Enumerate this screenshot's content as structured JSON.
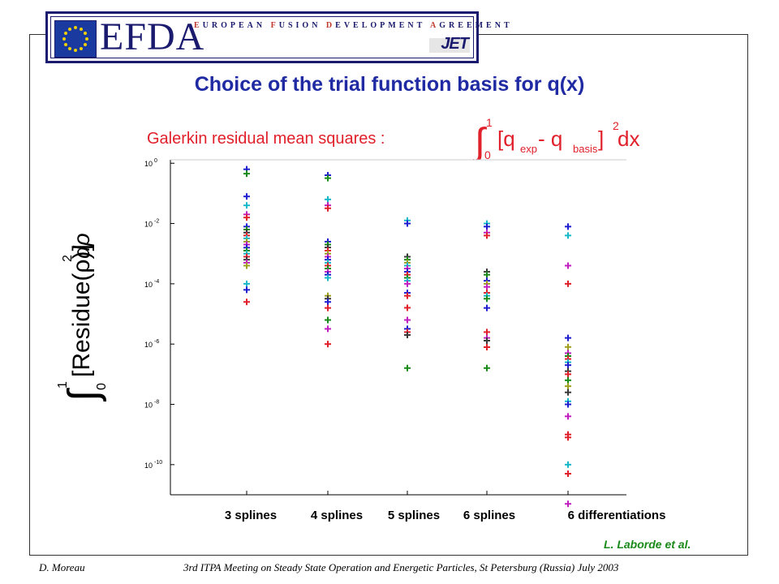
{
  "header": {
    "logo_main": "EFDA",
    "logo_line": [
      "E",
      "UROPEAN ",
      "F",
      "USION ",
      "D",
      "EVELOPMENT ",
      "A",
      "GREEMENT"
    ],
    "logo_sub": "JET"
  },
  "slide": {
    "title": "Choice of the trial function basis for q(x)",
    "subtitle": "Galerkin residual mean squares :",
    "subtitle_formula": {
      "upper": "1",
      "lower": "0",
      "body": "[q",
      "sub1": "exp",
      "minus": " - q",
      "sub2": "basis",
      "close": " ]",
      "power": "2",
      "dx": " dx"
    },
    "ylabel_formula": {
      "upper": "1",
      "lower": "0",
      "body": "[Residue(ρ)]",
      "power": "2",
      "drho": " dρ"
    },
    "credit": "L. Laborde et al.",
    "footer_left": "D. Moreau",
    "footer_right": "3rd ITPA Meeting on Steady State Operation and Energetic Particles, St Petersburg (Russia) July 2003"
  },
  "chart_data": {
    "type": "scatter",
    "title": "",
    "xlabel": "",
    "ylabel": "",
    "y_scale": "log",
    "ylim": [
      1e-11,
      1.3
    ],
    "y_ticks": [
      {
        "exp": "0"
      },
      {
        "exp": "-2"
      },
      {
        "exp": "-4"
      },
      {
        "exp": "-6"
      },
      {
        "exp": "-8"
      },
      {
        "exp": "-10"
      }
    ],
    "y_tick_values": [
      1,
      0.01,
      0.0001,
      1e-06,
      1e-08,
      1e-10
    ],
    "categories": [
      "3 splines",
      "4 splines",
      "5 splines",
      "6 splines",
      "6 differentiations"
    ],
    "marker": "+",
    "grid": false,
    "colors": {
      "blue": "#1f1fd0",
      "green": "#1a8a1a",
      "red": "#e0202a",
      "cyan": "#19b8c8",
      "magenta": "#c020c0",
      "olive": "#a0a020",
      "dark": "#3a3a3a"
    },
    "series": [
      {
        "category": "3 splines",
        "points": [
          {
            "y": 0.63,
            "c": "blue"
          },
          {
            "y": 0.45,
            "c": "green"
          },
          {
            "y": 0.079,
            "c": "blue"
          },
          {
            "y": 0.04,
            "c": "cyan"
          },
          {
            "y": 0.02,
            "c": "magenta"
          },
          {
            "y": 0.0158,
            "c": "red"
          },
          {
            "y": 0.0079,
            "c": "blue"
          },
          {
            "y": 0.0063,
            "c": "green"
          },
          {
            "y": 0.005,
            "c": "dark"
          },
          {
            "y": 0.004,
            "c": "red"
          },
          {
            "y": 0.0032,
            "c": "cyan"
          },
          {
            "y": 0.0025,
            "c": "olive"
          },
          {
            "y": 0.002,
            "c": "magenta"
          },
          {
            "y": 0.00158,
            "c": "blue"
          },
          {
            "y": 0.00126,
            "c": "green"
          },
          {
            "y": 0.001,
            "c": "cyan"
          },
          {
            "y": 0.00079,
            "c": "red"
          },
          {
            "y": 0.00063,
            "c": "dark"
          },
          {
            "y": 0.0005,
            "c": "magenta"
          },
          {
            "y": 0.0004,
            "c": "olive"
          },
          {
            "y": 0.0001,
            "c": "cyan"
          },
          {
            "y": 6.3e-05,
            "c": "blue"
          },
          {
            "y": 2.5e-05,
            "c": "red"
          }
        ]
      },
      {
        "category": "4 splines",
        "points": [
          {
            "y": 0.4,
            "c": "blue"
          },
          {
            "y": 0.32,
            "c": "green"
          },
          {
            "y": 0.063,
            "c": "cyan"
          },
          {
            "y": 0.04,
            "c": "magenta"
          },
          {
            "y": 0.032,
            "c": "red"
          },
          {
            "y": 0.0025,
            "c": "blue"
          },
          {
            "y": 0.002,
            "c": "green"
          },
          {
            "y": 0.0016,
            "c": "dark"
          },
          {
            "y": 0.00126,
            "c": "red"
          },
          {
            "y": 0.001,
            "c": "olive"
          },
          {
            "y": 0.00079,
            "c": "magenta"
          },
          {
            "y": 0.00063,
            "c": "blue"
          },
          {
            "y": 0.0005,
            "c": "cyan"
          },
          {
            "y": 0.0004,
            "c": "red"
          },
          {
            "y": 0.00032,
            "c": "green"
          },
          {
            "y": 0.00025,
            "c": "magenta"
          },
          {
            "y": 0.0002,
            "c": "blue"
          },
          {
            "y": 0.000158,
            "c": "cyan"
          },
          {
            "y": 4e-05,
            "c": "olive"
          },
          {
            "y": 3.2e-05,
            "c": "dark"
          },
          {
            "y": 2.5e-05,
            "c": "blue"
          },
          {
            "y": 1.58e-05,
            "c": "red"
          },
          {
            "y": 6.3e-06,
            "c": "green"
          },
          {
            "y": 3.2e-06,
            "c": "magenta"
          },
          {
            "y": 1e-06,
            "c": "red"
          }
        ]
      },
      {
        "category": "5 splines",
        "points": [
          {
            "y": 0.0126,
            "c": "cyan"
          },
          {
            "y": 0.01,
            "c": "blue"
          },
          {
            "y": 0.00079,
            "c": "dark"
          },
          {
            "y": 0.00063,
            "c": "green"
          },
          {
            "y": 0.0005,
            "c": "olive"
          },
          {
            "y": 0.0004,
            "c": "cyan"
          },
          {
            "y": 0.00032,
            "c": "magenta"
          },
          {
            "y": 0.00025,
            "c": "blue"
          },
          {
            "y": 0.0002,
            "c": "red"
          },
          {
            "y": 0.000158,
            "c": "green"
          },
          {
            "y": 0.000126,
            "c": "cyan"
          },
          {
            "y": 0.0001,
            "c": "magenta"
          },
          {
            "y": 5e-05,
            "c": "blue"
          },
          {
            "y": 4e-05,
            "c": "red"
          },
          {
            "y": 1.6e-05,
            "c": "red"
          },
          {
            "y": 6.3e-06,
            "c": "magenta"
          },
          {
            "y": 3.2e-06,
            "c": "blue"
          },
          {
            "y": 2.5e-06,
            "c": "red"
          },
          {
            "y": 2e-06,
            "c": "dark"
          },
          {
            "y": 1.6e-07,
            "c": "green"
          }
        ]
      },
      {
        "category": "6 splines",
        "points": [
          {
            "y": 0.01,
            "c": "cyan"
          },
          {
            "y": 0.0079,
            "c": "blue"
          },
          {
            "y": 0.005,
            "c": "magenta"
          },
          {
            "y": 0.004,
            "c": "red"
          },
          {
            "y": 0.00025,
            "c": "dark"
          },
          {
            "y": 0.0002,
            "c": "green"
          },
          {
            "y": 0.000126,
            "c": "blue"
          },
          {
            "y": 0.0001,
            "c": "olive"
          },
          {
            "y": 7.9e-05,
            "c": "magenta"
          },
          {
            "y": 5e-05,
            "c": "red"
          },
          {
            "y": 4e-05,
            "c": "cyan"
          },
          {
            "y": 3.2e-05,
            "c": "green"
          },
          {
            "y": 1.58e-05,
            "c": "blue"
          },
          {
            "y": 2.5e-06,
            "c": "red"
          },
          {
            "y": 1.6e-06,
            "c": "magenta"
          },
          {
            "y": 1.3e-06,
            "c": "dark"
          },
          {
            "y": 7.9e-07,
            "c": "red"
          },
          {
            "y": 1.6e-07,
            "c": "green"
          }
        ]
      },
      {
        "category": "6 differentiations",
        "points": [
          {
            "y": 0.0079,
            "c": "blue"
          },
          {
            "y": 0.004,
            "c": "cyan"
          },
          {
            "y": 0.0004,
            "c": "magenta"
          },
          {
            "y": 0.0001,
            "c": "red"
          },
          {
            "y": 1.6e-06,
            "c": "blue"
          },
          {
            "y": 8e-07,
            "c": "olive"
          },
          {
            "y": 5e-07,
            "c": "magenta"
          },
          {
            "y": 4e-07,
            "c": "green"
          },
          {
            "y": 3.2e-07,
            "c": "red"
          },
          {
            "y": 2.5e-07,
            "c": "cyan"
          },
          {
            "y": 2e-07,
            "c": "blue"
          },
          {
            "y": 1.26e-07,
            "c": "dark"
          },
          {
            "y": 1e-07,
            "c": "red"
          },
          {
            "y": 6.3e-08,
            "c": "green"
          },
          {
            "y": 4e-08,
            "c": "olive"
          },
          {
            "y": 2.5e-08,
            "c": "dark"
          },
          {
            "y": 1.26e-08,
            "c": "cyan"
          },
          {
            "y": 1e-08,
            "c": "blue"
          },
          {
            "y": 4e-09,
            "c": "magenta"
          },
          {
            "y": 1e-09,
            "c": "red"
          },
          {
            "y": 8e-10,
            "c": "red"
          },
          {
            "y": 1e-10,
            "c": "cyan"
          },
          {
            "y": 5e-11,
            "c": "red"
          },
          {
            "y": 5e-12,
            "c": "magenta"
          }
        ]
      }
    ]
  }
}
